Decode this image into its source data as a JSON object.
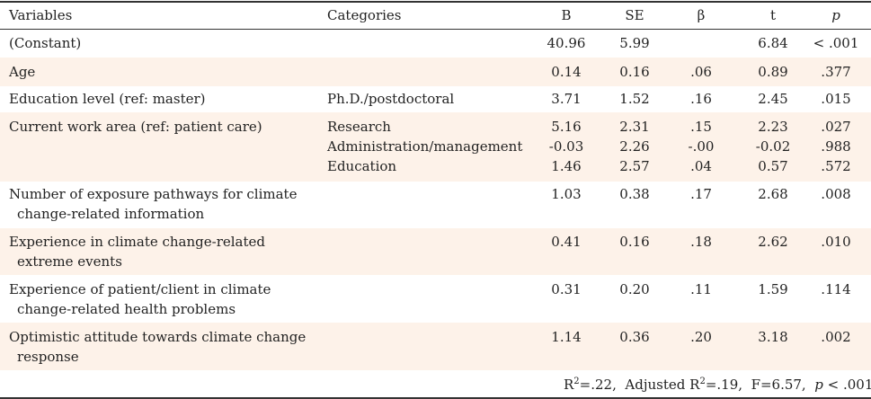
{
  "headers": {
    "variables": "Variables",
    "categories": "Categories",
    "b": "B",
    "se": "SE",
    "beta": "β",
    "t": "t",
    "p": "p"
  },
  "rows": [
    {
      "variable": "(Constant)",
      "variable_line2": "",
      "category": "",
      "b": "40.96",
      "se": "5.99",
      "beta": "",
      "t": "6.84",
      "p": "< .001"
    },
    {
      "variable": "Age",
      "variable_line2": "",
      "category": "",
      "b": "0.14",
      "se": "0.16",
      "beta": ".06",
      "t": "0.89",
      "p": ".377"
    },
    {
      "variable": "Education level (ref: master)",
      "variable_line2": "",
      "category": "Ph.D./postdoctoral",
      "b": "3.71",
      "se": "1.52",
      "beta": ".16",
      "t": "2.45",
      "p": ".015"
    },
    {
      "variable": "Current work area (ref: patient care)",
      "variable_line2": "",
      "sub": [
        {
          "category": "Research",
          "b": "5.16",
          "se": "2.31",
          "beta": ".15",
          "t": "2.23",
          "p": ".027"
        },
        {
          "category": "Administration/management",
          "b": "-0.03",
          "se": "2.26",
          "beta": "-.00",
          "t": "-0.02",
          "p": ".988"
        },
        {
          "category": "Education",
          "b": "1.46",
          "se": "2.57",
          "beta": ".04",
          "t": "0.57",
          "p": ".572"
        }
      ]
    },
    {
      "variable": "Number of exposure pathways for climate",
      "variable_line2": "change-related information",
      "category": "",
      "b": "1.03",
      "se": "0.38",
      "beta": ".17",
      "t": "2.68",
      "p": ".008"
    },
    {
      "variable": "Experience in climate change-related",
      "variable_line2": "extreme events",
      "category": "",
      "b": "0.41",
      "se": "0.16",
      "beta": ".18",
      "t": "2.62",
      "p": ".010"
    },
    {
      "variable": "Experience of patient/client in climate",
      "variable_line2": "change-related health problems",
      "category": "",
      "b": "0.31",
      "se": "0.20",
      "beta": ".11",
      "t": "1.59",
      "p": ".114"
    },
    {
      "variable": "Optimistic attitude towards climate change",
      "variable_line2": "response",
      "category": "",
      "b": "1.14",
      "se": "0.36",
      "beta": ".20",
      "t": "3.18",
      "p": ".002"
    }
  ],
  "footnote": {
    "r2_label": "R",
    "r2_sup": "2",
    "r2_value": "=.22,",
    "adj_label": "Adjusted R",
    "adj_sup": "2",
    "adj_value": "=.19,",
    "f_stat": "F=6.57,",
    "p_label": "p",
    "p_value": "< .001"
  },
  "colors": {
    "shade": "#fdf2e9",
    "rule": "#333333"
  }
}
